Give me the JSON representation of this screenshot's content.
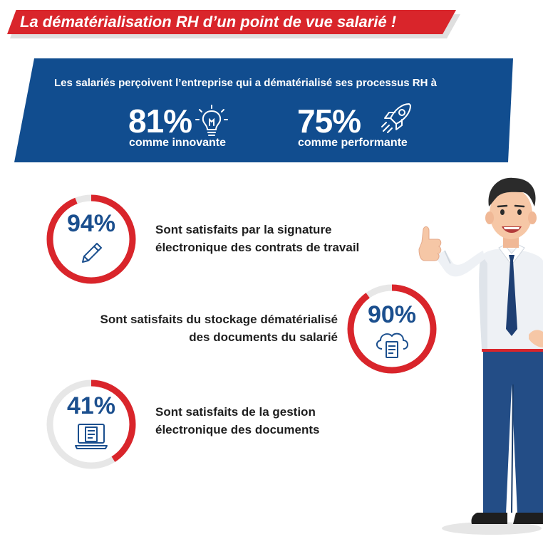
{
  "title": "La dématérialisation RH d’un point de vue salarié !",
  "banner": {
    "intro": "Les salariés perçoivent l’entreprise qui a dématérialisé ses processus RH à",
    "stat1": {
      "value": "81%",
      "caption": "comme innovante",
      "icon": "lightbulb-icon"
    },
    "stat2": {
      "value": "75%",
      "caption": "comme performante",
      "icon": "rocket-icon"
    }
  },
  "stats": [
    {
      "value": "94%",
      "line1": "Sont satisfaits par la signature",
      "line2": "électronique des contrats de travail",
      "icon": "pen-icon",
      "progress": 0.94
    },
    {
      "value": "90%",
      "line1": "Sont satisfaits du stockage dématérialisé",
      "line2": "des documents du salarié",
      "icon": "cloud-document-icon",
      "progress": 0.9
    },
    {
      "value": "41%",
      "line1": "Sont satisfaits de la gestion",
      "line2": "électronique des documents",
      "icon": "computer-document-icon",
      "progress": 0.41
    }
  ],
  "colors": {
    "red": "#d9252b",
    "blue": "#114d8f",
    "dark_blue": "#1b4f8e"
  }
}
